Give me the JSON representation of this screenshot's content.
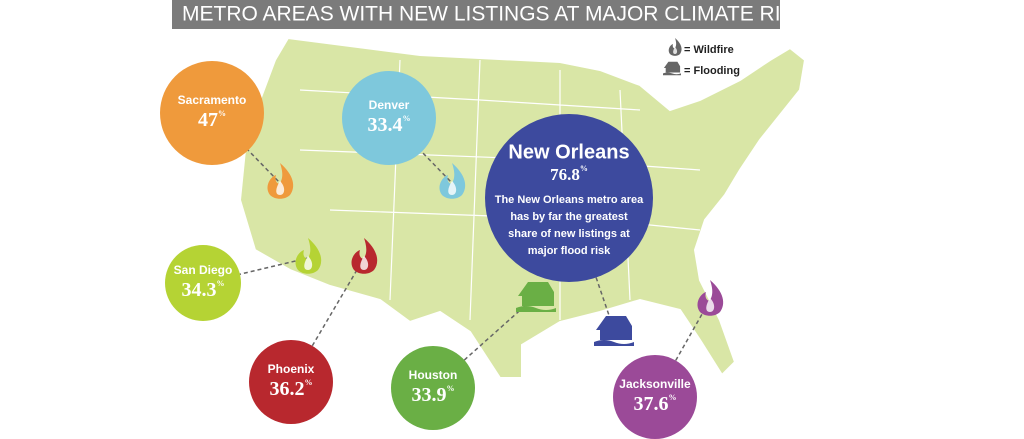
{
  "header": {
    "title": "METRO AREAS WITH NEW LISTINGS AT MAJOR CLIMATE RISK"
  },
  "legend": [
    {
      "label": "= Wildfire"
    },
    {
      "label": "= Flooding"
    }
  ],
  "cities": [
    {
      "name": "Sacramento",
      "value": "47",
      "unit": "%",
      "risk": "wildfire"
    },
    {
      "name": "Denver",
      "value": "33.4",
      "unit": "%",
      "risk": "wildfire"
    },
    {
      "name": "New Orleans",
      "value": "76.8",
      "unit": "%",
      "risk": "flooding",
      "note": [
        "The New Orleans metro area",
        "has by far the greatest",
        "share of new listings at",
        "major flood risk"
      ]
    },
    {
      "name": "San Diego",
      "value": "34.3",
      "unit": "%",
      "risk": "wildfire"
    },
    {
      "name": "Phoenix",
      "value": "36.2",
      "unit": "%",
      "risk": "wildfire"
    },
    {
      "name": "Houston",
      "value": "33.9",
      "unit": "%",
      "risk": "flooding"
    },
    {
      "name": "Jacksonville",
      "value": "37.6",
      "unit": "%",
      "risk": "wildfire"
    }
  ]
}
